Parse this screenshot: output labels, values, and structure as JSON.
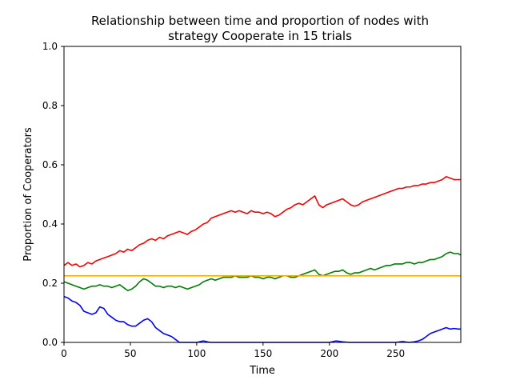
{
  "chart_data": {
    "type": "line",
    "title_lines": [
      "Relationship between time and proportion of nodes with",
      "strategy Cooperate in 15 trials"
    ],
    "xlabel": "Time",
    "ylabel": "Proportion of Cooperators",
    "xlim": [
      0,
      299
    ],
    "ylim": [
      0,
      1.0
    ],
    "xticks": [
      0,
      50,
      100,
      150,
      200,
      250
    ],
    "xtick_labels": [
      "0",
      "50",
      "100",
      "150",
      "200",
      "250"
    ],
    "yticks": [
      0,
      0.2,
      0.4,
      0.6,
      0.8,
      1.0
    ],
    "ytick_labels": [
      "0.0",
      "0.2",
      "0.4",
      "0.6",
      "0.8",
      "1.0"
    ],
    "grid": false,
    "legend": "none",
    "series": [
      {
        "color": "#ff0000",
        "points": [
          [
            0,
            0.26
          ],
          [
            3,
            0.27
          ],
          [
            6,
            0.26
          ],
          [
            9,
            0.265
          ],
          [
            12,
            0.255
          ],
          [
            15,
            0.26
          ],
          [
            18,
            0.27
          ],
          [
            21,
            0.265
          ],
          [
            24,
            0.275
          ],
          [
            27,
            0.28
          ],
          [
            30,
            0.285
          ],
          [
            33,
            0.29
          ],
          [
            36,
            0.295
          ],
          [
            39,
            0.3
          ],
          [
            42,
            0.31
          ],
          [
            45,
            0.305
          ],
          [
            48,
            0.315
          ],
          [
            51,
            0.31
          ],
          [
            54,
            0.32
          ],
          [
            57,
            0.33
          ],
          [
            60,
            0.335
          ],
          [
            63,
            0.345
          ],
          [
            66,
            0.35
          ],
          [
            69,
            0.345
          ],
          [
            72,
            0.355
          ],
          [
            75,
            0.35
          ],
          [
            78,
            0.36
          ],
          [
            81,
            0.365
          ],
          [
            84,
            0.37
          ],
          [
            87,
            0.375
          ],
          [
            90,
            0.37
          ],
          [
            93,
            0.365
          ],
          [
            96,
            0.375
          ],
          [
            99,
            0.38
          ],
          [
            102,
            0.39
          ],
          [
            105,
            0.4
          ],
          [
            108,
            0.405
          ],
          [
            111,
            0.42
          ],
          [
            114,
            0.425
          ],
          [
            117,
            0.43
          ],
          [
            120,
            0.435
          ],
          [
            123,
            0.44
          ],
          [
            126,
            0.445
          ],
          [
            129,
            0.44
          ],
          [
            132,
            0.445
          ],
          [
            135,
            0.44
          ],
          [
            138,
            0.435
          ],
          [
            141,
            0.445
          ],
          [
            144,
            0.44
          ],
          [
            147,
            0.44
          ],
          [
            150,
            0.435
          ],
          [
            153,
            0.44
          ],
          [
            156,
            0.435
          ],
          [
            159,
            0.425
          ],
          [
            162,
            0.43
          ],
          [
            165,
            0.44
          ],
          [
            168,
            0.45
          ],
          [
            171,
            0.455
          ],
          [
            174,
            0.465
          ],
          [
            177,
            0.47
          ],
          [
            180,
            0.465
          ],
          [
            183,
            0.475
          ],
          [
            186,
            0.485
          ],
          [
            189,
            0.495
          ],
          [
            192,
            0.465
          ],
          [
            195,
            0.455
          ],
          [
            198,
            0.465
          ],
          [
            201,
            0.47
          ],
          [
            204,
            0.475
          ],
          [
            207,
            0.48
          ],
          [
            210,
            0.485
          ],
          [
            213,
            0.475
          ],
          [
            216,
            0.465
          ],
          [
            219,
            0.46
          ],
          [
            222,
            0.465
          ],
          [
            225,
            0.475
          ],
          [
            228,
            0.48
          ],
          [
            231,
            0.485
          ],
          [
            234,
            0.49
          ],
          [
            237,
            0.495
          ],
          [
            240,
            0.5
          ],
          [
            243,
            0.505
          ],
          [
            246,
            0.51
          ],
          [
            249,
            0.515
          ],
          [
            252,
            0.52
          ],
          [
            255,
            0.52
          ],
          [
            258,
            0.525
          ],
          [
            261,
            0.525
          ],
          [
            264,
            0.53
          ],
          [
            267,
            0.53
          ],
          [
            270,
            0.535
          ],
          [
            273,
            0.535
          ],
          [
            276,
            0.54
          ],
          [
            279,
            0.54
          ],
          [
            282,
            0.545
          ],
          [
            285,
            0.55
          ],
          [
            288,
            0.56
          ],
          [
            291,
            0.555
          ],
          [
            294,
            0.55
          ],
          [
            297,
            0.55
          ],
          [
            299,
            0.55
          ]
        ]
      },
      {
        "color": "#008000",
        "points": [
          [
            0,
            0.205
          ],
          [
            3,
            0.2
          ],
          [
            6,
            0.195
          ],
          [
            9,
            0.19
          ],
          [
            12,
            0.185
          ],
          [
            15,
            0.18
          ],
          [
            18,
            0.185
          ],
          [
            21,
            0.19
          ],
          [
            24,
            0.19
          ],
          [
            27,
            0.195
          ],
          [
            30,
            0.19
          ],
          [
            33,
            0.19
          ],
          [
            36,
            0.185
          ],
          [
            39,
            0.19
          ],
          [
            42,
            0.195
          ],
          [
            45,
            0.185
          ],
          [
            48,
            0.175
          ],
          [
            51,
            0.18
          ],
          [
            54,
            0.19
          ],
          [
            57,
            0.205
          ],
          [
            60,
            0.215
          ],
          [
            63,
            0.21
          ],
          [
            66,
            0.2
          ],
          [
            69,
            0.19
          ],
          [
            72,
            0.19
          ],
          [
            75,
            0.185
          ],
          [
            78,
            0.19
          ],
          [
            81,
            0.19
          ],
          [
            84,
            0.185
          ],
          [
            87,
            0.19
          ],
          [
            90,
            0.185
          ],
          [
            93,
            0.18
          ],
          [
            96,
            0.185
          ],
          [
            99,
            0.19
          ],
          [
            102,
            0.195
          ],
          [
            105,
            0.205
          ],
          [
            108,
            0.21
          ],
          [
            111,
            0.215
          ],
          [
            114,
            0.21
          ],
          [
            117,
            0.215
          ],
          [
            120,
            0.22
          ],
          [
            123,
            0.22
          ],
          [
            126,
            0.22
          ],
          [
            129,
            0.225
          ],
          [
            132,
            0.22
          ],
          [
            135,
            0.22
          ],
          [
            138,
            0.22
          ],
          [
            141,
            0.225
          ],
          [
            144,
            0.22
          ],
          [
            147,
            0.22
          ],
          [
            150,
            0.215
          ],
          [
            153,
            0.22
          ],
          [
            156,
            0.22
          ],
          [
            159,
            0.215
          ],
          [
            162,
            0.22
          ],
          [
            165,
            0.225
          ],
          [
            168,
            0.225
          ],
          [
            171,
            0.22
          ],
          [
            174,
            0.22
          ],
          [
            177,
            0.225
          ],
          [
            180,
            0.23
          ],
          [
            183,
            0.235
          ],
          [
            186,
            0.24
          ],
          [
            189,
            0.245
          ],
          [
            192,
            0.23
          ],
          [
            195,
            0.225
          ],
          [
            198,
            0.23
          ],
          [
            201,
            0.235
          ],
          [
            204,
            0.24
          ],
          [
            207,
            0.24
          ],
          [
            210,
            0.245
          ],
          [
            213,
            0.235
          ],
          [
            216,
            0.23
          ],
          [
            219,
            0.235
          ],
          [
            222,
            0.235
          ],
          [
            225,
            0.24
          ],
          [
            228,
            0.245
          ],
          [
            231,
            0.25
          ],
          [
            234,
            0.245
          ],
          [
            237,
            0.25
          ],
          [
            240,
            0.255
          ],
          [
            243,
            0.26
          ],
          [
            246,
            0.26
          ],
          [
            249,
            0.265
          ],
          [
            252,
            0.265
          ],
          [
            255,
            0.265
          ],
          [
            258,
            0.27
          ],
          [
            261,
            0.27
          ],
          [
            264,
            0.265
          ],
          [
            267,
            0.27
          ],
          [
            270,
            0.27
          ],
          [
            273,
            0.275
          ],
          [
            276,
            0.28
          ],
          [
            279,
            0.28
          ],
          [
            282,
            0.285
          ],
          [
            285,
            0.29
          ],
          [
            288,
            0.3
          ],
          [
            291,
            0.305
          ],
          [
            294,
            0.3
          ],
          [
            297,
            0.3
          ],
          [
            299,
            0.295
          ]
        ]
      },
      {
        "color": "#0000ff",
        "points": [
          [
            0,
            0.155
          ],
          [
            3,
            0.15
          ],
          [
            6,
            0.14
          ],
          [
            9,
            0.135
          ],
          [
            12,
            0.125
          ],
          [
            15,
            0.105
          ],
          [
            18,
            0.1
          ],
          [
            21,
            0.095
          ],
          [
            24,
            0.1
          ],
          [
            27,
            0.12
          ],
          [
            30,
            0.115
          ],
          [
            33,
            0.095
          ],
          [
            36,
            0.085
          ],
          [
            39,
            0.075
          ],
          [
            42,
            0.07
          ],
          [
            45,
            0.07
          ],
          [
            48,
            0.06
          ],
          [
            51,
            0.055
          ],
          [
            54,
            0.055
          ],
          [
            57,
            0.065
          ],
          [
            60,
            0.075
          ],
          [
            63,
            0.08
          ],
          [
            66,
            0.07
          ],
          [
            69,
            0.05
          ],
          [
            72,
            0.04
          ],
          [
            75,
            0.03
          ],
          [
            78,
            0.025
          ],
          [
            81,
            0.02
          ],
          [
            84,
            0.01
          ],
          [
            87,
            0.0
          ],
          [
            90,
            0.0
          ],
          [
            100,
            0.0
          ],
          [
            105,
            0.005
          ],
          [
            110,
            0.0
          ],
          [
            120,
            0.0
          ],
          [
            150,
            0.0
          ],
          [
            200,
            0.0
          ],
          [
            205,
            0.005
          ],
          [
            210,
            0.002
          ],
          [
            215,
            0.0
          ],
          [
            250,
            0.0
          ],
          [
            255,
            0.003
          ],
          [
            260,
            0.0
          ],
          [
            264,
            0.002
          ],
          [
            267,
            0.005
          ],
          [
            270,
            0.01
          ],
          [
            273,
            0.02
          ],
          [
            276,
            0.03
          ],
          [
            279,
            0.035
          ],
          [
            282,
            0.04
          ],
          [
            285,
            0.045
          ],
          [
            288,
            0.05
          ],
          [
            291,
            0.045
          ],
          [
            294,
            0.047
          ],
          [
            297,
            0.045
          ],
          [
            299,
            0.045
          ]
        ]
      },
      {
        "color": "#ffa500",
        "points": [
          [
            0,
            0.225
          ],
          [
            299,
            0.225
          ]
        ]
      }
    ]
  }
}
